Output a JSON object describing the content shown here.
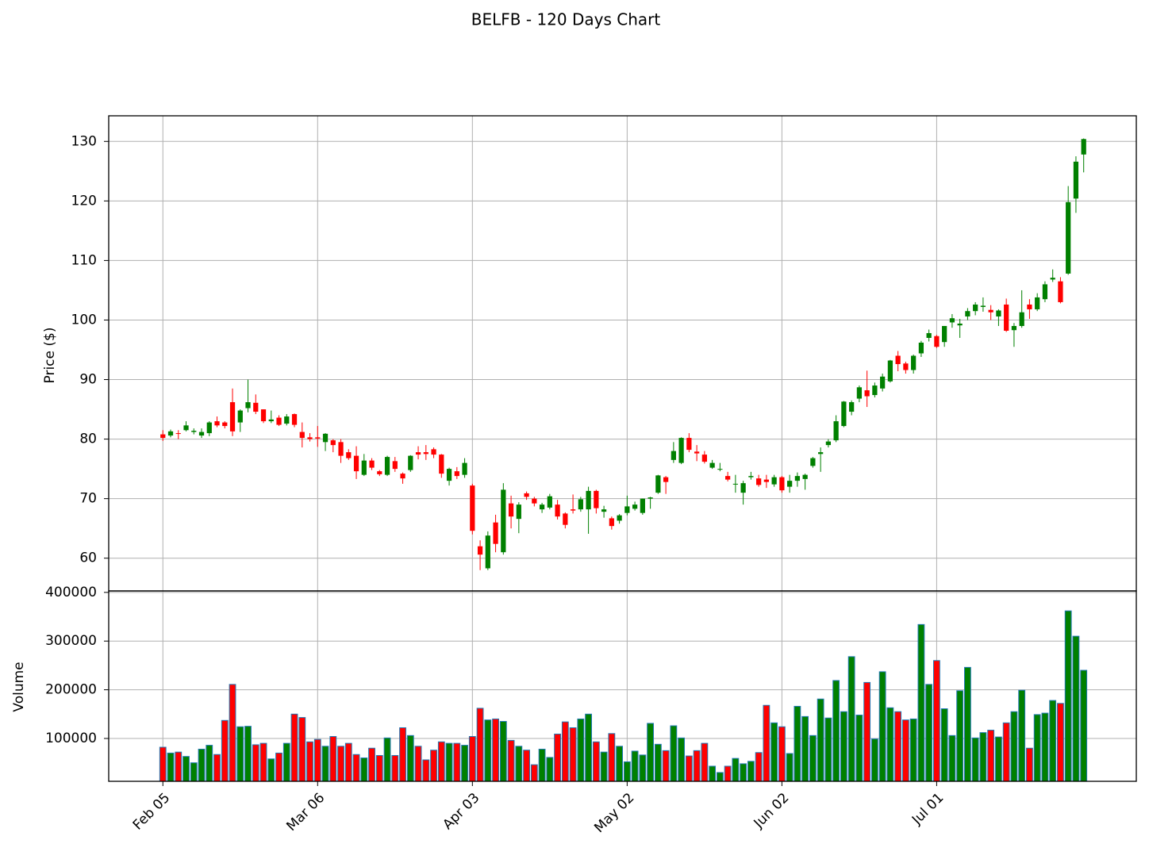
{
  "chart_data": {
    "type": "candlestick",
    "title": "BELFB - 120 Days Chart",
    "ylabel": "Price ($)",
    "volume_ylabel": "Volume",
    "up_color": "#008000",
    "down_color": "#ff0000",
    "volume_edge_color": "#1f77b4",
    "grid": true,
    "xlim": [
      -7,
      125.8
    ],
    "xticks": [
      {
        "value": 0,
        "label": "Feb 05"
      },
      {
        "value": 20,
        "label": "Mar 06"
      },
      {
        "value": 40,
        "label": "Apr 03"
      },
      {
        "value": 60,
        "label": "May 02"
      },
      {
        "value": 80,
        "label": "Jun 02"
      },
      {
        "value": 100,
        "label": "Jul 01"
      }
    ],
    "ylim": [
      54.5,
      134.3
    ],
    "yticks": [
      60,
      70,
      80,
      90,
      100,
      110,
      120,
      130
    ],
    "volume_ylim": [
      12000,
      403000
    ],
    "volume_yticks": [
      100000,
      200000,
      300000,
      400000
    ],
    "open": [
      80.8,
      80.6,
      81,
      81.5,
      81.2,
      80.6,
      81,
      83,
      82.8,
      86.2,
      82.8,
      85.2,
      86.1,
      85,
      83,
      83.6,
      82.6,
      84.2,
      81.2,
      80.3,
      80.3,
      79.5,
      79.8,
      79.5,
      77.8,
      77.2,
      74,
      76.4,
      74.6,
      74,
      76.3,
      74.2,
      74.8,
      77.8,
      77.8,
      78.3,
      77.4,
      73,
      74.6,
      74,
      72.2,
      62,
      58.3,
      66,
      61,
      69.2,
      66.6,
      70.9,
      70,
      68.2,
      68.5,
      69,
      67.5,
      68.2,
      68.2,
      68.2,
      71.3,
      67.8,
      66.7,
      66.3,
      67.6,
      68.3,
      67.6,
      70,
      71,
      73.6,
      76.5,
      76,
      80.2,
      77.9,
      77.4,
      75.2,
      74.9,
      73.8,
      72.4,
      71,
      73.6,
      73.4,
      73.2,
      72.4,
      73.6,
      72,
      73,
      73.3,
      75.5,
      77.5,
      79,
      79.8,
      82.2,
      84.6,
      86.8,
      88.2,
      87.4,
      88.5,
      89.7,
      94,
      92.7,
      91.6,
      94.4,
      97,
      97.3,
      96.3,
      99.6,
      99.1,
      100.6,
      101.5,
      102.2,
      101.7,
      100.6,
      102.6,
      98.3,
      99,
      102.6,
      101.8,
      103.5,
      106.8,
      106.5,
      107.8,
      120.4,
      127.8
    ],
    "high": [
      81.5,
      81.6,
      81.5,
      83,
      81.8,
      81.8,
      83,
      83.8,
      83,
      88.5,
      85,
      90,
      87.5,
      85,
      84.8,
      84,
      84.2,
      84.3,
      82.8,
      81,
      82.2,
      81,
      80,
      80,
      78.3,
      78.8,
      77.5,
      76.8,
      74.8,
      77.2,
      77,
      74.4,
      77.3,
      78.8,
      79,
      78.6,
      77.5,
      75.2,
      75.3,
      76.8,
      72.5,
      63,
      64.5,
      67.3,
      72.6,
      70.5,
      69.4,
      71.2,
      70.3,
      69.3,
      70.8,
      69.8,
      67.7,
      70.7,
      70.3,
      72,
      71.5,
      68.8,
      67,
      67.4,
      70.5,
      69.5,
      70,
      70.3,
      74,
      73.8,
      79.5,
      80.3,
      81,
      79,
      78,
      76.5,
      76,
      74.5,
      74,
      73,
      74.5,
      74,
      74,
      74,
      73.8,
      74,
      74.4,
      74.2,
      77,
      78.6,
      80,
      84,
      86.4,
      86.5,
      89,
      91.5,
      89.5,
      91,
      93.3,
      94.8,
      93,
      94.2,
      96.5,
      98.4,
      97.5,
      99,
      101,
      100.2,
      102,
      103,
      103.8,
      102.5,
      101.8,
      103.6,
      99.5,
      105,
      103.5,
      104.5,
      106.5,
      108.5,
      107.2,
      122.5,
      127.5,
      130.5
    ],
    "low": [
      79.7,
      80.3,
      80,
      81.3,
      80.8,
      80.2,
      80.5,
      82,
      81.8,
      80.5,
      81.2,
      84.5,
      84.2,
      82.7,
      82.7,
      82.2,
      82.3,
      82,
      78.6,
      79.6,
      78.7,
      78,
      77.8,
      76,
      76.5,
      73.3,
      73.8,
      74.8,
      73.8,
      73.8,
      74.5,
      72.5,
      74.5,
      76.6,
      76.5,
      76.8,
      73.5,
      72.2,
      73.3,
      73.5,
      64,
      58,
      58,
      61,
      60.6,
      65,
      64.2,
      69.8,
      68.7,
      67.6,
      68.2,
      66.5,
      65,
      67.5,
      67.8,
      64.1,
      67.5,
      66.8,
      64.8,
      65.8,
      67.2,
      68,
      67.3,
      68.3,
      70.8,
      70.8,
      76,
      75.8,
      77.8,
      76.3,
      75.9,
      75,
      74.6,
      72.9,
      71,
      69,
      73.2,
      72,
      71.8,
      72,
      71,
      71,
      72,
      71.5,
      75.2,
      74.5,
      78.6,
      79.5,
      82,
      84,
      86.2,
      85.4,
      87,
      88,
      89.5,
      91.4,
      91,
      91,
      93.8,
      96.4,
      95.3,
      95.5,
      98.7,
      97,
      100,
      100.8,
      101.4,
      100,
      99,
      98,
      95.5,
      98.7,
      100.2,
      101.5,
      103,
      106.4,
      102.8,
      107.6,
      118,
      124.8
    ],
    "close": [
      80.2,
      81.3,
      80.9,
      82.3,
      81.4,
      81.2,
      82.8,
      82.3,
      82.2,
      81.3,
      84.8,
      86.2,
      84.6,
      83,
      83.3,
      82.4,
      83.8,
      82.4,
      80.2,
      80,
      80.1,
      80.9,
      79,
      77.2,
      76.8,
      74.6,
      76.4,
      75.2,
      74.1,
      77,
      75,
      73.4,
      77.2,
      77.4,
      77.5,
      77.4,
      74.2,
      75,
      73.8,
      76,
      64.6,
      60.6,
      63.8,
      62.4,
      71.5,
      67,
      69,
      70.3,
      69.2,
      69,
      70.4,
      67,
      65.6,
      68,
      69.9,
      71.3,
      68.4,
      68.2,
      65.4,
      67.2,
      68.7,
      69,
      70,
      70.2,
      73.9,
      72.8,
      78,
      80.2,
      78.2,
      77.6,
      76.2,
      76,
      75,
      73.2,
      72.5,
      72.6,
      73.8,
      72.3,
      72.8,
      73.6,
      71.4,
      73,
      73.8,
      74,
      76.8,
      77.8,
      79.6,
      83,
      86.3,
      86.2,
      88.7,
      87.2,
      89,
      90.5,
      93.2,
      92.6,
      91.6,
      94,
      96.2,
      97.8,
      95.5,
      99,
      100.3,
      99.4,
      101.5,
      102.6,
      102.4,
      101.3,
      101.6,
      98.2,
      99,
      101.3,
      101.8,
      103.8,
      106,
      107.1,
      103,
      119.8,
      126.6,
      130.4
    ],
    "volume": [
      82000,
      70000,
      72000,
      63000,
      50000,
      78000,
      86000,
      67000,
      137000,
      211000,
      124000,
      125000,
      87000,
      90000,
      58000,
      70000,
      90000,
      150000,
      143000,
      93000,
      98000,
      84000,
      104000,
      84000,
      90000,
      67000,
      60000,
      80000,
      65000,
      101000,
      65000,
      122000,
      106000,
      84000,
      56000,
      76000,
      93000,
      90000,
      90000,
      86000,
      104000,
      162000,
      138000,
      140000,
      135000,
      96000,
      84000,
      76000,
      46000,
      78000,
      61000,
      109000,
      134000,
      122000,
      140000,
      150000,
      93000,
      72000,
      110000,
      84000,
      52000,
      74000,
      66000,
      131000,
      88000,
      75000,
      126000,
      101000,
      64000,
      75000,
      90000,
      43000,
      30000,
      43000,
      59000,
      48000,
      53000,
      71000,
      168000,
      132000,
      124000,
      69000,
      166000,
      145000,
      106000,
      181000,
      142000,
      219000,
      155000,
      268000,
      148000,
      215000,
      99000,
      237000,
      163000,
      155000,
      138000,
      140000,
      334000,
      211000,
      260000,
      161000,
      106000,
      198000,
      246000,
      101000,
      112000,
      117000,
      103000,
      132000,
      155000,
      199000,
      80000,
      149000,
      152000,
      178000,
      172000,
      362000,
      310000,
      240000
    ]
  }
}
